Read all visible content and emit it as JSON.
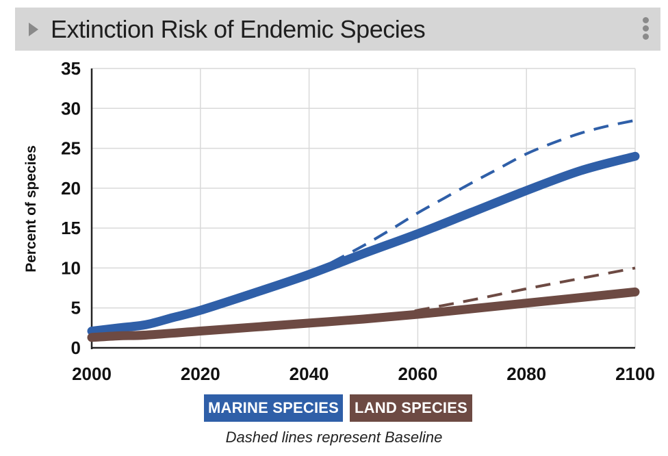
{
  "header": {
    "title": "Extinction Risk of Endemic Species"
  },
  "chart_data": {
    "type": "line",
    "title": "Extinction Risk of Endemic Species",
    "xlabel": "",
    "ylabel": "Percent of species",
    "xlim": [
      2000,
      2100
    ],
    "ylim": [
      0,
      35
    ],
    "xticks": [
      2000,
      2020,
      2040,
      2060,
      2080,
      2100
    ],
    "yticks": [
      0,
      5,
      10,
      15,
      20,
      25,
      30,
      35
    ],
    "grid": true,
    "series": [
      {
        "name": "MARINE SPECIES",
        "style": "solid",
        "color": "#2f5fa8",
        "x": [
          2000,
          2005,
          2010,
          2015,
          2020,
          2030,
          2040,
          2050,
          2060,
          2070,
          2080,
          2090,
          2100
        ],
        "y": [
          2.1,
          2.5,
          2.9,
          3.8,
          4.7,
          6.9,
          9.2,
          11.8,
          14.3,
          17.0,
          19.7,
          22.2,
          24.0
        ]
      },
      {
        "name": "MARINE SPECIES Baseline",
        "style": "dashed",
        "color": "#2f5fa8",
        "x": [
          2040,
          2045,
          2050,
          2055,
          2060,
          2065,
          2070,
          2075,
          2080,
          2085,
          2090,
          2095,
          2100
        ],
        "y": [
          9.2,
          11.0,
          12.8,
          14.8,
          16.9,
          18.8,
          20.7,
          22.5,
          24.3,
          25.7,
          26.9,
          27.8,
          28.5
        ]
      },
      {
        "name": "LAND SPECIES",
        "style": "solid",
        "color": "#6d4a43",
        "x": [
          2000,
          2005,
          2010,
          2020,
          2030,
          2040,
          2050,
          2060,
          2070,
          2080,
          2090,
          2100
        ],
        "y": [
          1.3,
          1.5,
          1.6,
          2.1,
          2.6,
          3.1,
          3.6,
          4.2,
          4.9,
          5.6,
          6.3,
          7.0
        ]
      },
      {
        "name": "LAND SPECIES Baseline",
        "style": "dashed",
        "color": "#6d4a43",
        "x": [
          2055,
          2060,
          2070,
          2080,
          2090,
          2100
        ],
        "y": [
          4.0,
          4.7,
          6.0,
          7.4,
          8.7,
          10.0
        ]
      }
    ],
    "legend": [
      {
        "label": "MARINE SPECIES",
        "color": "#2f5fa8"
      },
      {
        "label": "LAND SPECIES",
        "color": "#6d4a43"
      }
    ],
    "note": "Dashed lines represent Baseline"
  }
}
